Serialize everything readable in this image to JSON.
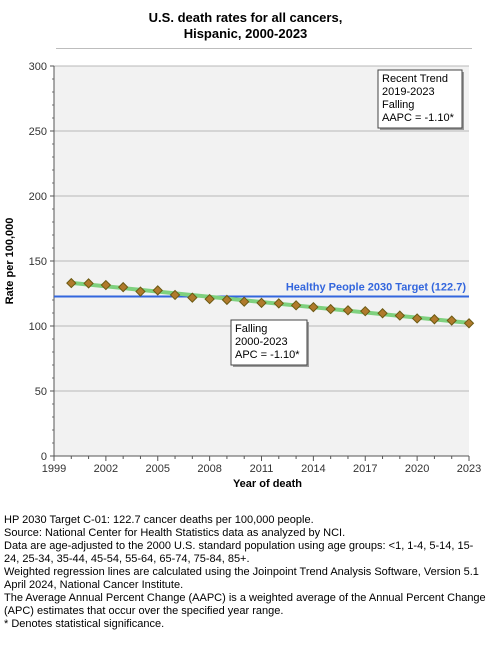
{
  "title_line1": "U.S. death rates for all cancers,",
  "title_line2": "Hispanic,  2000-2023",
  "chart_data": {
    "type": "line",
    "xlabel": "Year of death",
    "ylabel": "Rate per 100,000",
    "xlim": [
      1999,
      2023
    ],
    "ylim": [
      0,
      300
    ],
    "xticks": [
      1999,
      2002,
      2005,
      2008,
      2011,
      2014,
      2017,
      2020,
      2023
    ],
    "yticks": [
      0,
      50,
      100,
      150,
      200,
      250,
      300
    ],
    "grid": true,
    "x": [
      2000,
      2001,
      2002,
      2003,
      2004,
      2005,
      2006,
      2007,
      2008,
      2009,
      2010,
      2011,
      2012,
      2013,
      2014,
      2015,
      2016,
      2017,
      2018,
      2019,
      2020,
      2021,
      2022,
      2023
    ],
    "series": [
      {
        "values": [
          133.0,
          132.8,
          131.5,
          129.9,
          126.5,
          127.4,
          123.9,
          121.8,
          120.7,
          120.1,
          118.7,
          117.8,
          117.4,
          115.9,
          114.5,
          113.0,
          112.1,
          111.4,
          109.8,
          108.0,
          105.8,
          105.2,
          104.2,
          102.1
        ]
      }
    ],
    "trend": {
      "start": [
        2000,
        133.2
      ],
      "end": [
        2023,
        102.4
      ]
    },
    "target": {
      "label": "Healthy People 2030 Target (122.7)",
      "value": 122.7
    },
    "annotations": [
      {
        "lines": [
          "Recent Trend",
          "2019-2023",
          "Falling",
          "AAPC = -1.10*"
        ]
      },
      {
        "lines": [
          "Falling",
          "2000-2023",
          "APC = -1.10*"
        ]
      }
    ],
    "colors": {
      "marker_fill": "#b07a2c",
      "marker_stroke": "#6b5a12",
      "trend": "#7fd17f",
      "target": "#3366dd",
      "plot_bg": "#f2f2f2",
      "grid": "#b8b8b8"
    }
  },
  "footnotes": [
    "HP 2030 Target C-01: 122.7 cancer deaths per 100,000 people.",
    "Source: National Center for Health Statistics data as analyzed by NCI.",
    "Data are age-adjusted to the 2000 U.S. standard population using age groups: <1, 1-4, 5-14, 15-24, 25-34, 35-44, 45-54, 55-64, 65-74, 75-84, 85+.",
    "Weighted regression lines are calculated using the Joinpoint Trend Analysis Software, Version 5.1 April 2024, National Cancer Institute.",
    "The Average Annual Percent Change (AAPC) is a weighted average of the Annual Percent Change (APC) estimates that occur over the specified year range.",
    "* Denotes statistical significance."
  ]
}
